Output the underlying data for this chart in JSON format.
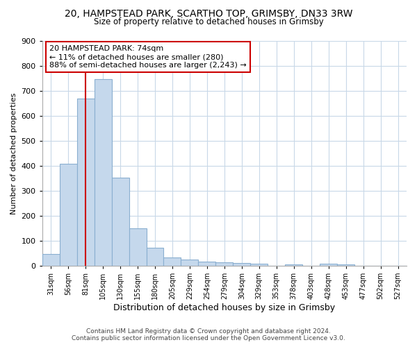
{
  "title_line1": "20, HAMPSTEAD PARK, SCARTHO TOP, GRIMSBY, DN33 3RW",
  "title_line2": "Size of property relative to detached houses in Grimsby",
  "xlabel": "Distribution of detached houses by size in Grimsby",
  "ylabel": "Number of detached properties",
  "footer_line1": "Contains HM Land Registry data © Crown copyright and database right 2024.",
  "footer_line2": "Contains public sector information licensed under the Open Government Licence v3.0.",
  "bin_labels": [
    "31sqm",
    "56sqm",
    "81sqm",
    "105sqm",
    "130sqm",
    "155sqm",
    "180sqm",
    "205sqm",
    "229sqm",
    "254sqm",
    "279sqm",
    "304sqm",
    "329sqm",
    "353sqm",
    "378sqm",
    "403sqm",
    "428sqm",
    "453sqm",
    "477sqm",
    "502sqm",
    "527sqm"
  ],
  "bar_values": [
    46,
    408,
    668,
    748,
    353,
    150,
    72,
    34,
    24,
    16,
    13,
    10,
    7,
    0,
    5,
    0,
    8,
    5,
    0,
    0,
    0
  ],
  "bar_color": "#c5d8ec",
  "bar_edge_color": "#8aafd0",
  "grid_color": "#c8d8e8",
  "vline_color": "#cc0000",
  "annotation_text": "20 HAMPSTEAD PARK: 74sqm\n← 11% of detached houses are smaller (280)\n88% of semi-detached houses are larger (2,243) →",
  "annotation_box_color": "#ffffff",
  "annotation_box_edge_color": "#cc0000",
  "ylim": [
    0,
    900
  ],
  "yticks": [
    0,
    100,
    200,
    300,
    400,
    500,
    600,
    700,
    800,
    900
  ],
  "bg_color": "#ffffff",
  "plot_bg_color": "#ffffff"
}
